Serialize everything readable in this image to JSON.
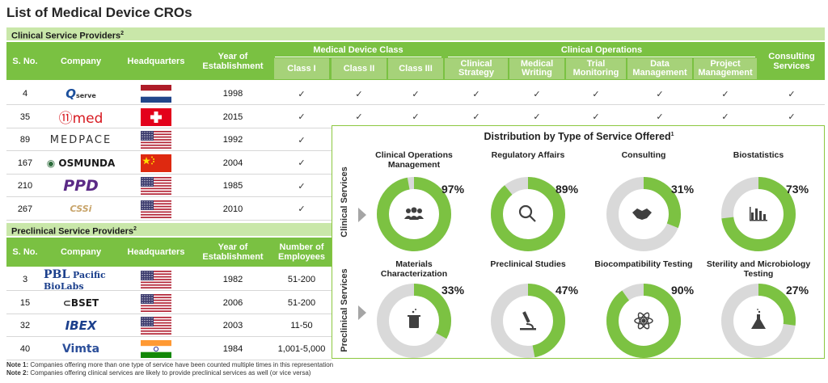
{
  "title": "List of Medical Device CROs",
  "clinical": {
    "section_label": "Clinical Service Providers",
    "section_sup": "2",
    "headers": {
      "sno": "S. No.",
      "company": "Company",
      "hq": "Headquarters",
      "year": "Year of Establishment",
      "mdc_group": "Medical Device Class",
      "co_group": "Clinical Operations",
      "consulting": "Consulting Services",
      "subs": [
        "Class I",
        "Class II",
        "Class III",
        "Clinical Strategy",
        "Medical Writing",
        "Trial Monitoring",
        "Data Management",
        "Project Management"
      ]
    },
    "rows": [
      {
        "sno": "4",
        "company": "Qserve",
        "country": "netherlands",
        "year": "1998"
      },
      {
        "sno": "35",
        "company": "med",
        "country": "switzerland",
        "year": "2015"
      },
      {
        "sno": "89",
        "company": "MEDPACE",
        "country": "usa",
        "year": "1992"
      },
      {
        "sno": "167",
        "company": "OSMUNDA",
        "country": "china",
        "year": "2004"
      },
      {
        "sno": "210",
        "company": "PPD",
        "country": "usa",
        "year": "1985"
      },
      {
        "sno": "267",
        "company": "CSSi",
        "country": "usa",
        "year": "2010"
      }
    ],
    "check": "✓"
  },
  "preclinical": {
    "section_label": "Preclinical Service Providers",
    "section_sup": "2",
    "headers": {
      "sno": "S. No.",
      "company": "Company",
      "hq": "Headquarters",
      "year": "Year of Establishment",
      "employees": "Number of Employees"
    },
    "rows": [
      {
        "sno": "3",
        "company": "Pacific BioLabs",
        "country": "usa",
        "year": "1982",
        "employees": "51-200"
      },
      {
        "sno": "15",
        "company": "CBSET",
        "country": "usa",
        "year": "2006",
        "employees": "51-200"
      },
      {
        "sno": "32",
        "company": "IBEX",
        "country": "usa",
        "year": "2003",
        "employees": "11-50"
      },
      {
        "sno": "40",
        "company": "Vimta",
        "country": "india",
        "year": "1984",
        "employees": "1,001-5,000"
      }
    ]
  },
  "distribution": {
    "title": "Distribution by Type of Service Offered",
    "title_sup": "1",
    "clinical_label": "Clinical Services",
    "preclinical_label": "Preclinical Services",
    "clinical_charts": [
      {
        "title": "Clinical Operations Management",
        "value": 97,
        "label": "97%",
        "icon": "people-icon"
      },
      {
        "title": "Regulatory Affairs",
        "value": 89,
        "label": "89%",
        "icon": "magnifier-icon"
      },
      {
        "title": "Consulting",
        "value": 31,
        "label": "31%",
        "icon": "handshake-icon"
      },
      {
        "title": "Biostatistics",
        "value": 73,
        "label": "73%",
        "icon": "bar-chart-icon"
      }
    ],
    "preclinical_charts": [
      {
        "title": "Materials Characterization",
        "value": 33,
        "label": "33%",
        "icon": "beaker-icon"
      },
      {
        "title": "Preclinical Studies",
        "value": 47,
        "label": "47%",
        "icon": "microscope-icon"
      },
      {
        "title": "Biocompatibility Testing",
        "value": 90,
        "label": "90%",
        "icon": "atom-icon"
      },
      {
        "title": "Sterility and Microbiology Testing",
        "value": 27,
        "label": "27%",
        "icon": "flask-icon"
      }
    ]
  },
  "notes": [
    {
      "label": "Note 1:",
      "text": "Companies offering more than one type of service have been counted multiple times in this representation"
    },
    {
      "label": "Note 2:",
      "text": "Companies offering clinical services are likely to provide preclinical services as well (or vice versa)"
    }
  ],
  "colors": {
    "green": "#7ac142",
    "light_green": "#a6d279",
    "donut_fill": "#7cc242",
    "donut_track": "#d9d9d9"
  }
}
